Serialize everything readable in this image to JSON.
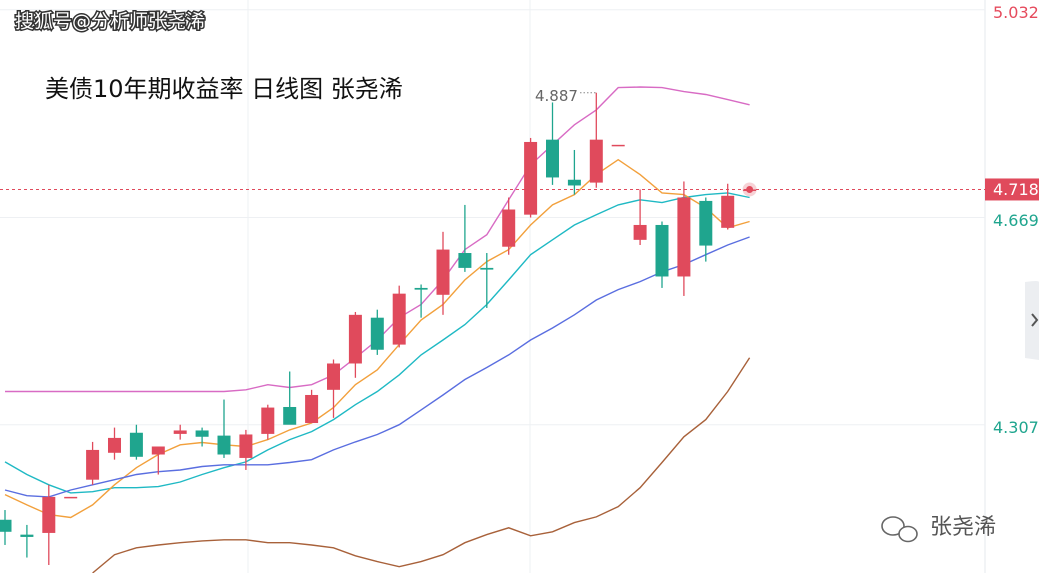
{
  "chart_data": {
    "type": "candlestick",
    "watermark": "搜狐号@分析师张尧浠",
    "title": "美债10年期收益率 日线图  张尧浠",
    "logo_text": "张尧浠",
    "ylim": [
      4.048,
      5.049
    ],
    "yticks": [
      4.307,
      4.669,
      5.032
    ],
    "ytick_colors": [
      "#1fa58e",
      "#1fa58e",
      "#e64b5d"
    ],
    "last_price": 4.718,
    "high_label": 4.887,
    "up_color": "#e04a5c",
    "down_color": "#1fa58e",
    "open": [
      4.141,
      4.115,
      4.118,
      4.181,
      4.211,
      4.258,
      4.293,
      4.255,
      4.291,
      4.297,
      4.288,
      4.249,
      4.291,
      4.338,
      4.31,
      4.368,
      4.414,
      4.494,
      4.447,
      4.546,
      4.534,
      4.607,
      4.581,
      4.618,
      4.674,
      4.805,
      4.735,
      4.73,
      4.796,
      4.63,
      4.656,
      4.566,
      4.698,
      4.651,
      4.718
    ],
    "high": [
      4.158,
      4.132,
      4.202,
      4.181,
      4.277,
      4.302,
      4.307,
      4.269,
      4.307,
      4.302,
      4.351,
      4.298,
      4.342,
      4.4,
      4.368,
      4.421,
      4.504,
      4.508,
      4.55,
      4.552,
      4.644,
      4.691,
      4.607,
      4.704,
      4.808,
      4.87,
      4.787,
      4.887,
      4.796,
      4.718,
      4.662,
      4.732,
      4.704,
      4.728,
      4.718
    ],
    "low": [
      4.097,
      4.075,
      4.062,
      4.181,
      4.202,
      4.246,
      4.246,
      4.22,
      4.281,
      4.269,
      4.249,
      4.228,
      4.281,
      4.31,
      4.31,
      4.319,
      4.389,
      4.429,
      4.442,
      4.494,
      4.499,
      4.574,
      4.511,
      4.604,
      4.669,
      4.726,
      4.709,
      4.721,
      4.796,
      4.621,
      4.546,
      4.532,
      4.592,
      4.648,
      4.718
    ],
    "close": [
      4.12,
      4.111,
      4.181,
      4.181,
      4.263,
      4.284,
      4.251,
      4.269,
      4.297,
      4.286,
      4.255,
      4.29,
      4.337,
      4.307,
      4.359,
      4.414,
      4.499,
      4.438,
      4.536,
      4.543,
      4.613,
      4.581,
      4.578,
      4.683,
      4.801,
      4.739,
      4.725,
      4.805,
      4.796,
      4.656,
      4.566,
      4.704,
      4.62,
      4.707,
      4.718
    ],
    "lines": [
      {
        "color": "#d86bc4",
        "values": [
          4.365,
          4.365,
          4.365,
          4.365,
          4.365,
          4.365,
          4.365,
          4.365,
          4.365,
          4.365,
          4.365,
          4.368,
          4.377,
          4.372,
          4.377,
          4.394,
          4.424,
          4.455,
          4.494,
          4.517,
          4.56,
          4.613,
          4.639,
          4.7,
          4.761,
          4.796,
          4.831,
          4.857,
          4.896,
          4.897,
          4.896,
          4.889,
          4.884,
          4.875,
          4.866
        ]
      },
      {
        "color": "#1fb9c4",
        "values": [
          4.242,
          4.22,
          4.202,
          4.188,
          4.19,
          4.197,
          4.197,
          4.199,
          4.207,
          4.22,
          4.232,
          4.242,
          4.263,
          4.281,
          4.295,
          4.316,
          4.342,
          4.365,
          4.394,
          4.429,
          4.455,
          4.482,
          4.517,
          4.56,
          4.604,
          4.63,
          4.656,
          4.674,
          4.691,
          4.7,
          4.695,
          4.704,
          4.709,
          4.712,
          4.704
        ]
      },
      {
        "color": "#f2a03c",
        "values": [
          4.185,
          4.167,
          4.15,
          4.145,
          4.167,
          4.202,
          4.232,
          4.255,
          4.272,
          4.276,
          4.272,
          4.269,
          4.281,
          4.298,
          4.31,
          4.337,
          4.377,
          4.403,
          4.447,
          4.49,
          4.517,
          4.56,
          4.592,
          4.613,
          4.656,
          4.691,
          4.709,
          4.744,
          4.77,
          4.744,
          4.712,
          4.709,
          4.686,
          4.651,
          4.662
        ]
      },
      {
        "color": "#5a6ee0",
        "values": [
          4.193,
          4.183,
          4.181,
          4.193,
          4.202,
          4.211,
          4.22,
          4.225,
          4.228,
          4.234,
          4.237,
          4.237,
          4.237,
          4.241,
          4.246,
          4.263,
          4.277,
          4.29,
          4.307,
          4.333,
          4.359,
          4.386,
          4.407,
          4.429,
          4.455,
          4.476,
          4.499,
          4.525,
          4.543,
          4.557,
          4.574,
          4.587,
          4.604,
          4.621,
          4.635
        ]
      },
      {
        "color": "#a8613a",
        "values": [
          null,
          null,
          null,
          null,
          4.048,
          4.08,
          4.092,
          4.097,
          4.101,
          4.104,
          4.106,
          4.106,
          4.101,
          4.101,
          4.097,
          4.092,
          4.078,
          4.068,
          4.059,
          4.068,
          4.08,
          4.101,
          4.115,
          4.127,
          4.113,
          4.12,
          4.136,
          4.146,
          4.164,
          4.197,
          4.241,
          4.286,
          4.316,
          4.365,
          4.424
        ]
      }
    ]
  }
}
